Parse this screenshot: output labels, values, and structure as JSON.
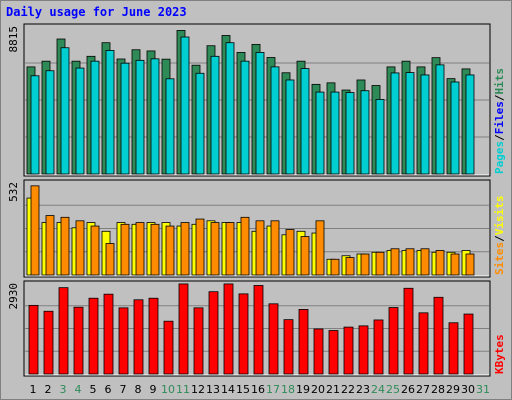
{
  "title": "Daily usage for June 2023",
  "colors": {
    "background": "#c0c0c0",
    "title": "#0000ff",
    "pages": "#00ced1",
    "files": "#0000ff",
    "hits": "#2e8b57",
    "sites": "#ff8c00",
    "visits": "#ffff00",
    "kbytes": "#ff0000",
    "weekend_day": "#2e8b57",
    "weekday": "#000000"
  },
  "chart_data": [
    {
      "type": "bar",
      "name": "hits-files-pages",
      "y_axis_label": "8815",
      "ylim": [
        0,
        8815
      ],
      "grid": true,
      "legend": {
        "position": "right",
        "entries": [
          {
            "label": "Pages",
            "color": "#00ced1"
          },
          {
            "label": "Files",
            "color": "#0000ff"
          },
          {
            "label": "Hits",
            "color": "#2e8b57"
          }
        ]
      },
      "categories": [
        "1",
        "2",
        "3",
        "4",
        "5",
        "6",
        "7",
        "8",
        "9",
        "10",
        "11",
        "12",
        "13",
        "14",
        "15",
        "16",
        "17",
        "18",
        "19",
        "20",
        "21",
        "22",
        "23",
        "24",
        "25",
        "26",
        "27",
        "28",
        "29",
        "30",
        "31"
      ],
      "series": [
        {
          "name": "Hits",
          "values": [
            6380,
            6720,
            8040,
            6720,
            7010,
            7820,
            6850,
            7400,
            7330,
            6840,
            8550,
            6480,
            7640,
            8250,
            7240,
            7720,
            6940,
            6030,
            6720,
            5340,
            5430,
            5000,
            5600,
            5270,
            6380,
            6720,
            6380,
            6930,
            5680,
            6260,
            0
          ]
        },
        {
          "name": "Pages",
          "values": [
            5850,
            6150,
            7520,
            6310,
            6720,
            7360,
            6600,
            6770,
            6860,
            5670,
            8160,
            6000,
            7010,
            7820,
            6720,
            7240,
            6380,
            5600,
            6280,
            4880,
            4880,
            4850,
            4960,
            4440,
            6020,
            6040,
            5900,
            6500,
            5480,
            5900,
            0
          ]
        }
      ]
    },
    {
      "type": "bar",
      "name": "sites-visits",
      "y_axis_label": "532",
      "ylim": [
        0,
        532
      ],
      "grid": true,
      "legend": {
        "position": "right",
        "entries": [
          {
            "label": "Sites",
            "color": "#ff8c00"
          },
          {
            "label": "Visits",
            "color": "#ffff00"
          }
        ]
      },
      "categories": [
        "1",
        "2",
        "3",
        "4",
        "5",
        "6",
        "7",
        "8",
        "9",
        "10",
        "11",
        "12",
        "13",
        "14",
        "15",
        "16",
        "17",
        "18",
        "19",
        "20",
        "21",
        "22",
        "23",
        "24",
        "25",
        "26",
        "27",
        "28",
        "29",
        "30",
        "31"
      ],
      "series": [
        {
          "name": "Visits",
          "values": [
            440,
            300,
            300,
            270,
            300,
            250,
            300,
            290,
            300,
            300,
            280,
            290,
            310,
            300,
            300,
            250,
            280,
            230,
            250,
            240,
            90,
            110,
            120,
            130,
            140,
            140,
            140,
            130,
            130,
            140,
            0
          ]
        },
        {
          "name": "Sites",
          "values": [
            510,
            340,
            330,
            310,
            280,
            180,
            290,
            300,
            290,
            280,
            300,
            320,
            300,
            300,
            330,
            310,
            310,
            260,
            220,
            310,
            90,
            100,
            120,
            130,
            150,
            150,
            150,
            140,
            120,
            120,
            0
          ]
        }
      ]
    },
    {
      "type": "bar",
      "name": "kbytes",
      "y_axis_label": "2930",
      "ylim": [
        0,
        2930
      ],
      "grid": true,
      "legend": {
        "position": "right",
        "entries": [
          {
            "label": "KBytes",
            "color": "#ff0000"
          }
        ]
      },
      "categories": [
        "1",
        "2",
        "3",
        "4",
        "5",
        "6",
        "7",
        "8",
        "9",
        "10",
        "11",
        "12",
        "13",
        "14",
        "15",
        "16",
        "17",
        "18",
        "19",
        "20",
        "21",
        "22",
        "23",
        "24",
        "25",
        "26",
        "27",
        "28",
        "29",
        "30",
        "31"
      ],
      "series": [
        {
          "name": "KBytes",
          "values": [
            2210,
            2020,
            2780,
            2150,
            2440,
            2570,
            2130,
            2390,
            2440,
            1700,
            2900,
            2130,
            2650,
            2900,
            2580,
            2850,
            2260,
            1750,
            2080,
            1450,
            1400,
            1510,
            1550,
            1740,
            2140,
            2760,
            1970,
            2470,
            1650,
            1930,
            0
          ]
        }
      ]
    }
  ],
  "x_axis": {
    "labels": [
      "1",
      "2",
      "3",
      "4",
      "5",
      "6",
      "7",
      "8",
      "9",
      "10",
      "11",
      "12",
      "13",
      "14",
      "15",
      "16",
      "17",
      "18",
      "19",
      "20",
      "21",
      "22",
      "23",
      "24",
      "25",
      "26",
      "27",
      "28",
      "29",
      "30",
      "31"
    ],
    "weekend": [
      false,
      false,
      true,
      true,
      false,
      false,
      false,
      false,
      false,
      true,
      true,
      false,
      false,
      false,
      false,
      false,
      true,
      true,
      false,
      false,
      false,
      false,
      false,
      true,
      true,
      false,
      false,
      false,
      false,
      false,
      true
    ]
  }
}
